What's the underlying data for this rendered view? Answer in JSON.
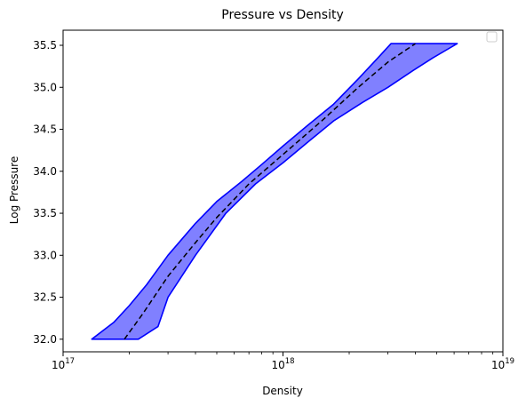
{
  "chart_data": {
    "type": "area",
    "title": "Pressure vs Density",
    "xlabel": "Density",
    "ylabel": "Log Pressure",
    "xscale": "log",
    "xlim": [
      1e+17,
      1e+19
    ],
    "ylim": [
      31.85,
      35.68
    ],
    "x_ticks": [
      {
        "value": 1e+17,
        "base": "10",
        "exp": "17"
      },
      {
        "value": 1e+18,
        "base": "10",
        "exp": "18"
      },
      {
        "value": 1e+19,
        "base": "10",
        "exp": "19"
      }
    ],
    "y_ticks": [
      "32.0",
      "32.5",
      "33.0",
      "33.5",
      "34.0",
      "34.5",
      "35.0",
      "35.5"
    ],
    "grid": false,
    "legend": {
      "location": "top-right",
      "entries": []
    },
    "band": {
      "fill_color": "#8080ff",
      "edge_color": "#0000ff",
      "upper": [
        [
          1.35e+17,
          32.0
        ],
        [
          1.7e+17,
          32.2
        ],
        [
          2e+17,
          32.4
        ],
        [
          2.4e+17,
          32.65
        ],
        [
          3e+17,
          33.0
        ],
        [
          4e+17,
          33.38
        ],
        [
          5e+17,
          33.64
        ],
        [
          6.5e+17,
          33.88
        ],
        [
          8e+17,
          34.08
        ],
        [
          1e+18,
          34.3
        ],
        [
          1.3e+18,
          34.55
        ],
        [
          1.7e+18,
          34.8
        ],
        [
          2.2e+18,
          35.1
        ],
        [
          2.7e+18,
          35.35
        ],
        [
          3.1e+18,
          35.52
        ]
      ],
      "lower": [
        [
          2.2e+17,
          32.0
        ],
        [
          2.7e+17,
          32.15
        ],
        [
          3e+17,
          32.5
        ],
        [
          4e+17,
          33.0
        ],
        [
          5.5e+17,
          33.5
        ],
        [
          7.5e+17,
          33.85
        ],
        [
          1e+18,
          34.1
        ],
        [
          1.3e+18,
          34.35
        ],
        [
          1.7e+18,
          34.6
        ],
        [
          2.3e+18,
          34.82
        ],
        [
          3e+18,
          35.0
        ],
        [
          3.9e+18,
          35.2
        ],
        [
          4.8e+18,
          35.35
        ],
        [
          6.2e+18,
          35.52
        ]
      ],
      "top": 35.52
    },
    "median": {
      "style": "dashed",
      "color": "#000000",
      "points": [
        [
          1.9e+17,
          32.0
        ],
        [
          2.3e+17,
          32.3
        ],
        [
          3e+17,
          32.75
        ],
        [
          4e+17,
          33.15
        ],
        [
          5e+17,
          33.45
        ],
        [
          7e+17,
          33.85
        ],
        [
          1e+18,
          34.2
        ],
        [
          1.5e+18,
          34.6
        ],
        [
          2.2e+18,
          35.0
        ],
        [
          3e+18,
          35.3
        ],
        [
          4e+18,
          35.52
        ]
      ]
    }
  }
}
